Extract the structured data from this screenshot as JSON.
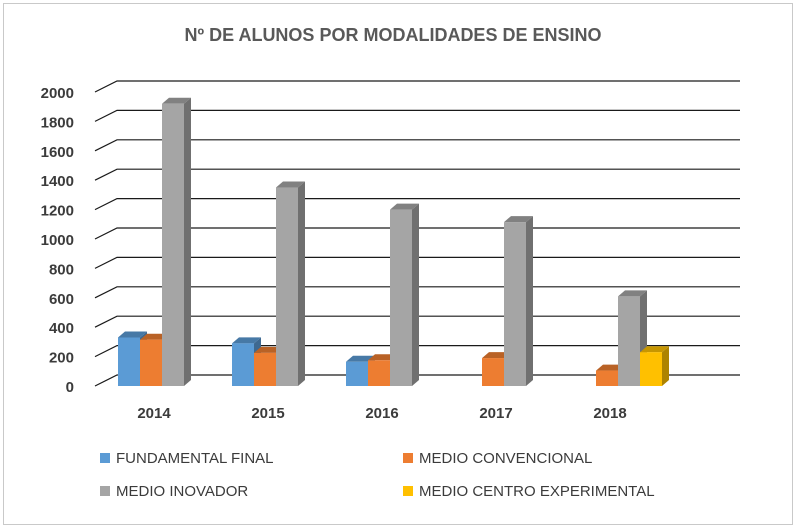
{
  "chart_data": {
    "type": "bar",
    "title": "Nº DE ALUNOS POR MODALIDADES DE ENSINO",
    "xlabel": "",
    "ylabel": "",
    "categories": [
      "2014",
      "2015",
      "2016",
      "2017",
      "2018"
    ],
    "ylim": [
      0,
      2000
    ],
    "yticks": [
      "0",
      "200",
      "400",
      "600",
      "800",
      "1000",
      "1200",
      "1400",
      "1600",
      "1800",
      "2000"
    ],
    "grid": true,
    "three_d": true,
    "legend_position": "bottom",
    "series": [
      {
        "name": "FUNDAMENTAL FINAL",
        "color": "#5b9bd5",
        "values": [
          330,
          290,
          165,
          null,
          null
        ]
      },
      {
        "name": "MEDIO CONVENCIONAL",
        "color": "#ed7d31",
        "values": [
          315,
          225,
          175,
          190,
          105
        ]
      },
      {
        "name": "MEDIO INOVADOR",
        "color": "#a5a5a5",
        "values": [
          1920,
          1350,
          1200,
          1115,
          610
        ]
      },
      {
        "name": "MEDIO CENTRO EXPERIMENTAL",
        "color": "#ffc000",
        "values": [
          null,
          null,
          null,
          null,
          230
        ]
      }
    ]
  }
}
